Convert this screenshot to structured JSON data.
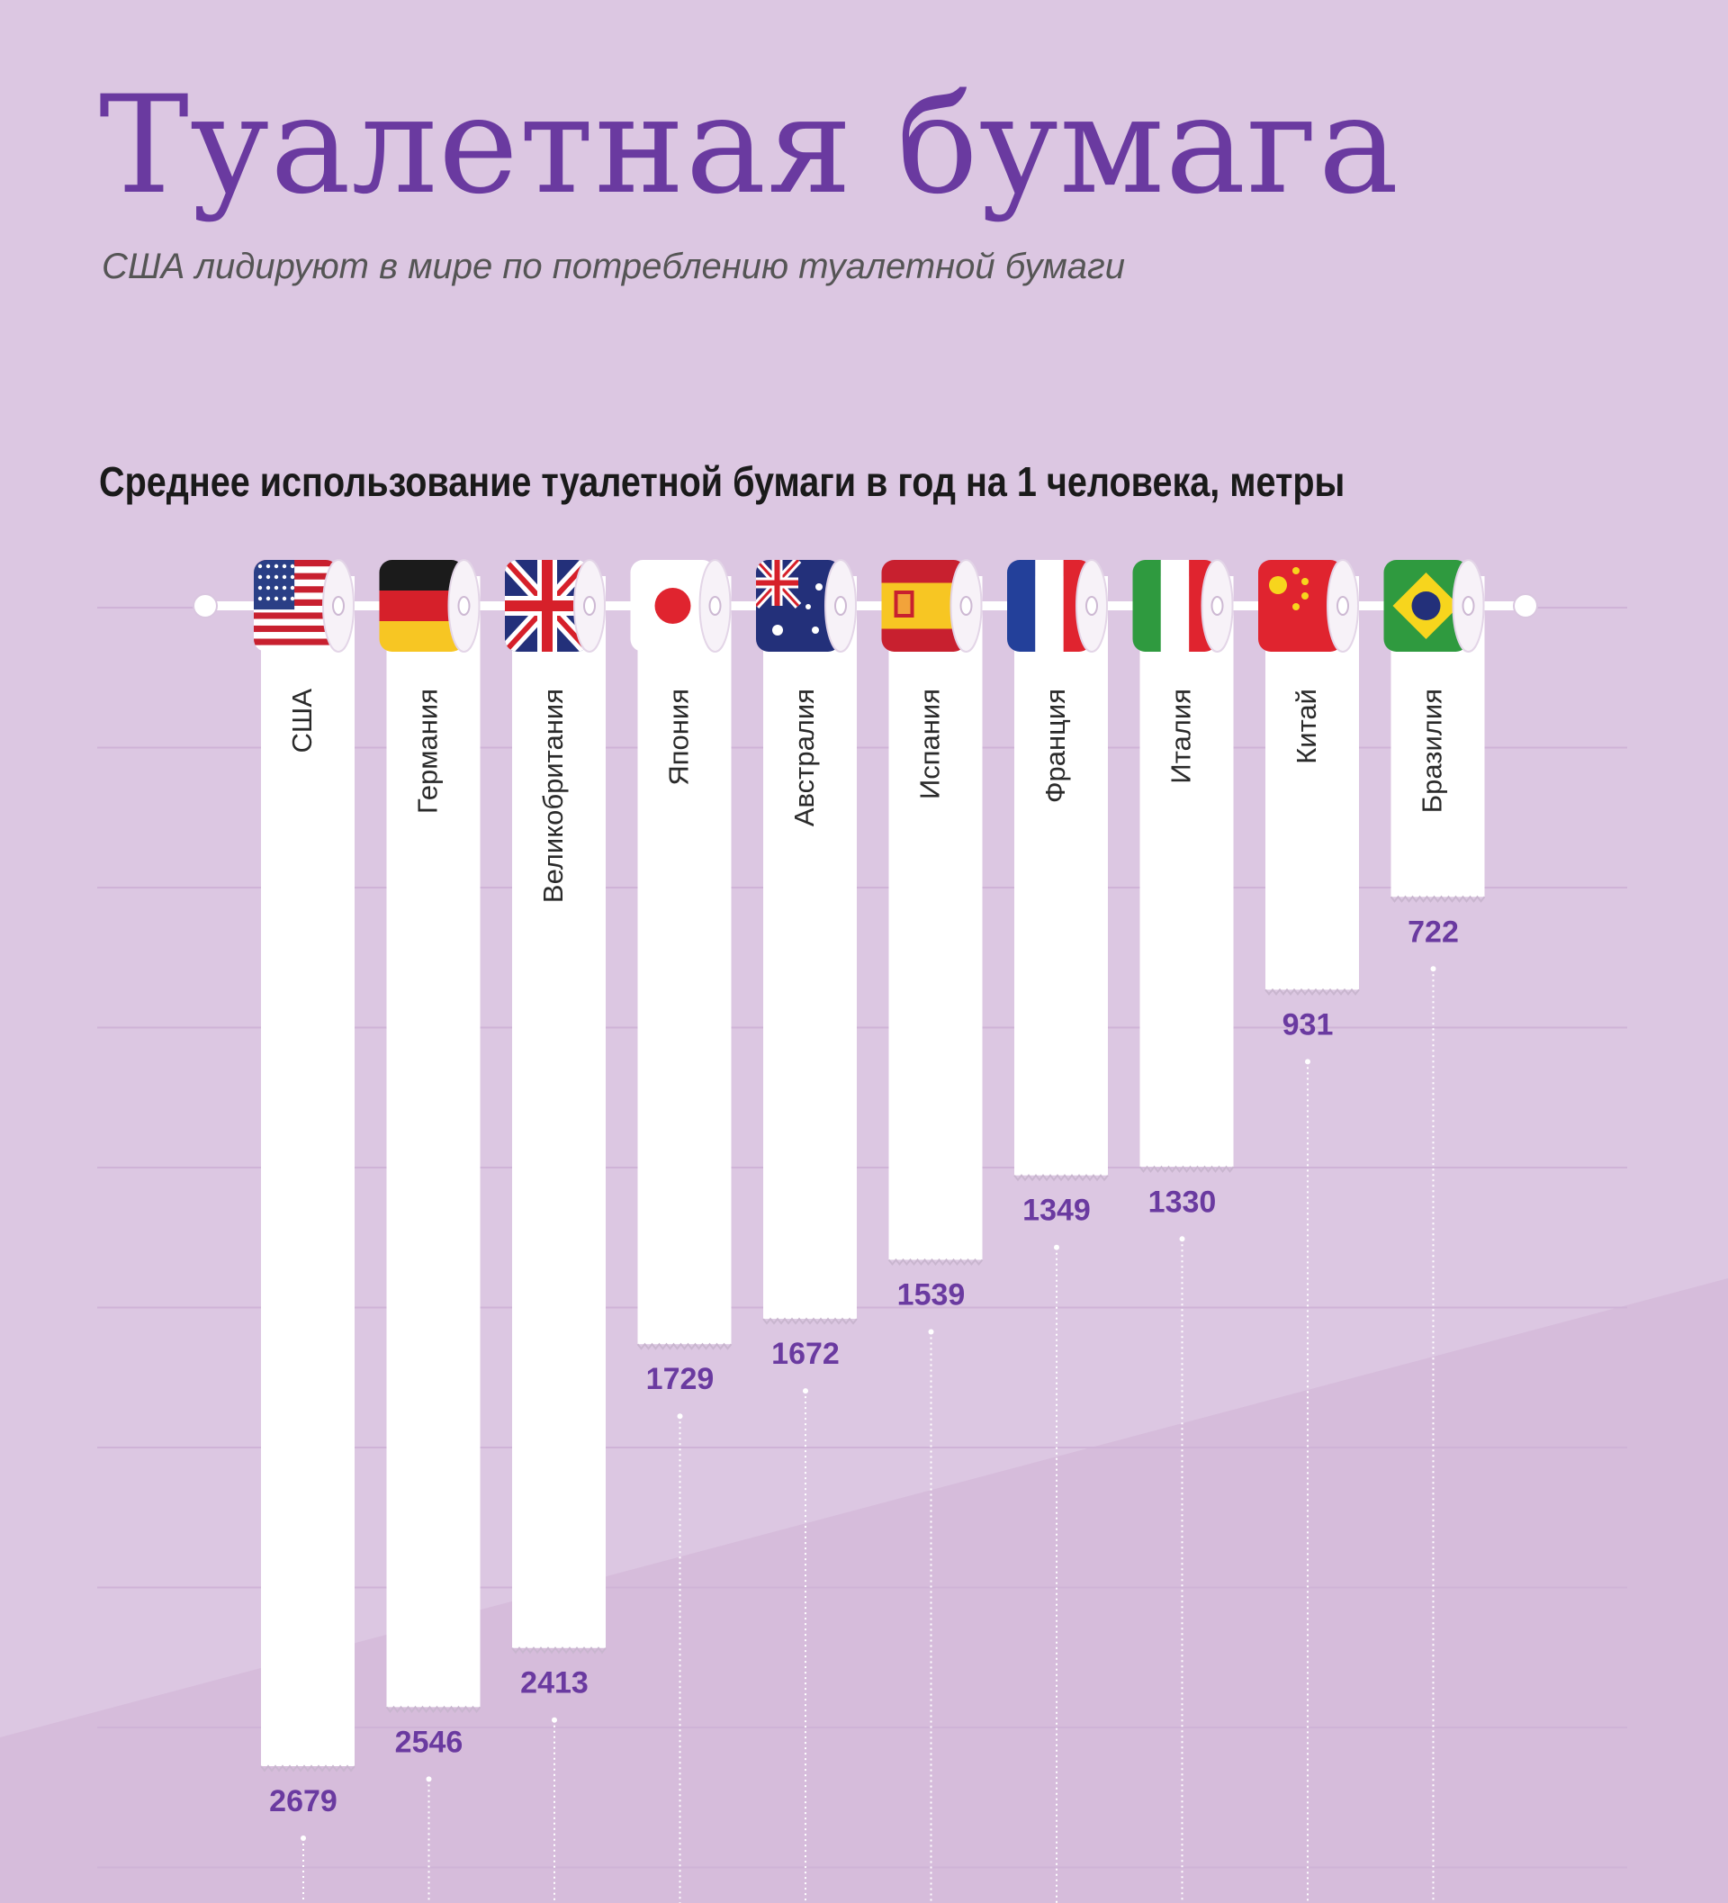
{
  "header": {
    "title": "Туалетная бумага",
    "subtitle": "США лидируют в мире по потреблению туалетной бумаги"
  },
  "colors": {
    "background": "#dcc7e2",
    "background_lower": "#d6bcdb",
    "accent": "#6a3aa0",
    "paper": "#ffffff",
    "grid": "#cfb3d7"
  },
  "chart_data": {
    "type": "bar",
    "title": "Среднее использование туалетной бумаги в год на 1 человека, метры",
    "categories": [
      "США",
      "Германия",
      "Великобритания",
      "Япония",
      "Австралия",
      "Испания",
      "Франция",
      "Италия",
      "Китай",
      "Бразилия"
    ],
    "values": [
      2679,
      2546,
      2413,
      1729,
      1672,
      1539,
      1349,
      1330,
      931,
      722
    ],
    "flags": [
      "usa-flag-icon",
      "germany-flag-icon",
      "uk-flag-icon",
      "japan-flag-icon",
      "australia-flag-icon",
      "spain-flag-icon",
      "france-flag-icon",
      "italy-flag-icon",
      "china-flag-icon",
      "brazil-flag-icon"
    ],
    "grid": true,
    "legend": "none"
  }
}
